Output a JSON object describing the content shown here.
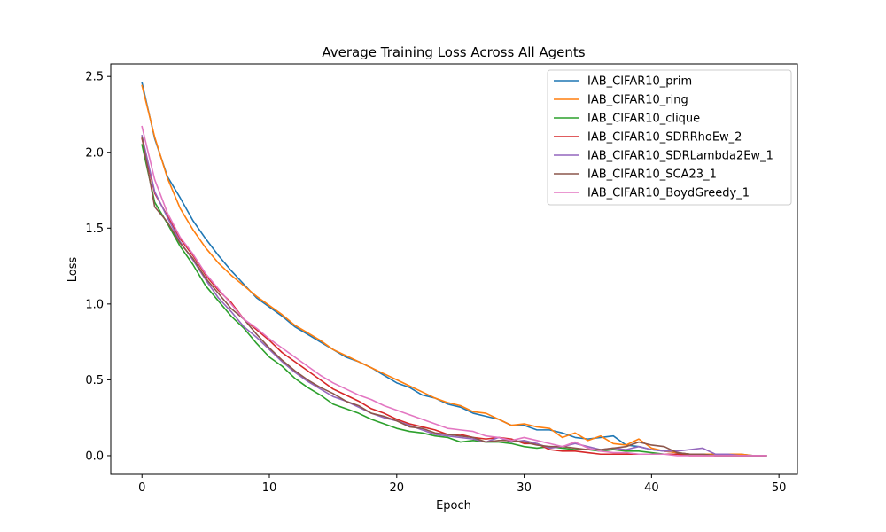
{
  "chart_data": {
    "type": "line",
    "title": "Average Training Loss Across All Agents",
    "xlabel": "Epoch",
    "ylabel": "Loss",
    "xlim": [
      -2.45,
      51.45
    ],
    "ylim": [
      -0.123,
      2.583
    ],
    "x_ticks": [
      0,
      10,
      20,
      30,
      40,
      50
    ],
    "y_ticks": [
      0.0,
      0.5,
      1.0,
      1.5,
      2.0,
      2.5
    ],
    "x_tick_labels": [
      "0",
      "10",
      "20",
      "30",
      "40",
      "50"
    ],
    "y_tick_labels": [
      "0.0",
      "0.5",
      "1.0",
      "1.5",
      "2.0",
      "2.5"
    ],
    "grid": false,
    "legend_position": "top-right",
    "x": [
      0,
      1,
      2,
      3,
      4,
      5,
      6,
      7,
      8,
      9,
      10,
      11,
      12,
      13,
      14,
      15,
      16,
      17,
      18,
      19,
      20,
      21,
      22,
      23,
      24,
      25,
      26,
      27,
      28,
      29,
      30,
      31,
      32,
      33,
      34,
      35,
      36,
      37,
      38,
      39,
      40,
      41,
      42,
      43,
      44,
      45,
      46,
      47,
      48,
      49
    ],
    "series": [
      {
        "name": "IAB_CIFAR10_prim",
        "color": "#1f77b4",
        "values": [
          2.46,
          2.09,
          1.84,
          1.7,
          1.55,
          1.43,
          1.32,
          1.22,
          1.13,
          1.04,
          0.98,
          0.92,
          0.85,
          0.8,
          0.75,
          0.7,
          0.65,
          0.62,
          0.58,
          0.53,
          0.48,
          0.45,
          0.4,
          0.38,
          0.34,
          0.32,
          0.28,
          0.26,
          0.24,
          0.2,
          0.2,
          0.17,
          0.17,
          0.15,
          0.12,
          0.11,
          0.12,
          0.13,
          0.07,
          0.06,
          0.04,
          0.03,
          0.02,
          0.01,
          0.01,
          0.01,
          0.01,
          0.01,
          0.0,
          0.0
        ]
      },
      {
        "name": "IAB_CIFAR10_ring",
        "color": "#ff7f0e",
        "values": [
          2.44,
          2.1,
          1.83,
          1.63,
          1.49,
          1.37,
          1.27,
          1.19,
          1.12,
          1.05,
          0.99,
          0.93,
          0.86,
          0.81,
          0.76,
          0.7,
          0.66,
          0.62,
          0.58,
          0.54,
          0.5,
          0.46,
          0.42,
          0.38,
          0.35,
          0.33,
          0.29,
          0.28,
          0.24,
          0.2,
          0.21,
          0.19,
          0.18,
          0.12,
          0.15,
          0.1,
          0.13,
          0.08,
          0.07,
          0.11,
          0.05,
          0.03,
          0.02,
          0.01,
          0.01,
          0.01,
          0.01,
          0.01,
          0.0,
          0.0
        ]
      },
      {
        "name": "IAB_CIFAR10_clique",
        "color": "#2ca02c",
        "values": [
          2.05,
          1.67,
          1.53,
          1.38,
          1.26,
          1.12,
          1.02,
          0.92,
          0.84,
          0.74,
          0.65,
          0.59,
          0.51,
          0.45,
          0.4,
          0.34,
          0.31,
          0.28,
          0.24,
          0.21,
          0.18,
          0.16,
          0.15,
          0.13,
          0.12,
          0.09,
          0.1,
          0.09,
          0.09,
          0.08,
          0.06,
          0.05,
          0.06,
          0.05,
          0.04,
          0.04,
          0.03,
          0.04,
          0.03,
          0.03,
          0.02,
          0.01,
          0.01,
          0.01,
          0.01,
          0.0,
          0.0,
          0.0,
          0.0,
          0.0
        ]
      },
      {
        "name": "IAB_CIFAR10_SDRRhoEw_2",
        "color": "#d62728",
        "values": [
          2.09,
          1.73,
          1.58,
          1.43,
          1.32,
          1.19,
          1.09,
          1.01,
          0.9,
          0.83,
          0.76,
          0.68,
          0.62,
          0.56,
          0.5,
          0.44,
          0.4,
          0.36,
          0.31,
          0.28,
          0.24,
          0.21,
          0.19,
          0.17,
          0.14,
          0.14,
          0.12,
          0.11,
          0.12,
          0.11,
          0.08,
          0.08,
          0.04,
          0.03,
          0.03,
          0.02,
          0.01,
          0.01,
          0.01,
          0.01,
          0.01,
          0.01,
          0.01,
          0.0,
          0.0,
          0.0,
          0.0,
          0.0,
          0.0,
          0.0
        ]
      },
      {
        "name": "IAB_CIFAR10_SDRLambda2Ew_1",
        "color": "#9467bd",
        "values": [
          2.11,
          1.74,
          1.57,
          1.41,
          1.29,
          1.16,
          1.04,
          0.95,
          0.85,
          0.78,
          0.7,
          0.62,
          0.55,
          0.49,
          0.44,
          0.39,
          0.36,
          0.32,
          0.28,
          0.25,
          0.23,
          0.2,
          0.17,
          0.14,
          0.13,
          0.12,
          0.11,
          0.09,
          0.12,
          0.09,
          0.1,
          0.08,
          0.05,
          0.06,
          0.08,
          0.06,
          0.04,
          0.05,
          0.04,
          0.06,
          0.04,
          0.03,
          0.03,
          0.04,
          0.05,
          0.01,
          0.01,
          0.0,
          0.0,
          0.0
        ]
      },
      {
        "name": "IAB_CIFAR10_SCA23_1",
        "color": "#8c564b",
        "values": [
          2.1,
          1.64,
          1.54,
          1.4,
          1.3,
          1.17,
          1.07,
          0.97,
          0.9,
          0.8,
          0.71,
          0.63,
          0.56,
          0.5,
          0.45,
          0.41,
          0.36,
          0.33,
          0.28,
          0.26,
          0.23,
          0.19,
          0.18,
          0.15,
          0.14,
          0.13,
          0.12,
          0.09,
          0.1,
          0.1,
          0.09,
          0.07,
          0.06,
          0.06,
          0.05,
          0.04,
          0.04,
          0.05,
          0.06,
          0.09,
          0.07,
          0.06,
          0.02,
          0.01,
          0.01,
          0.0,
          0.0,
          0.0,
          0.0,
          0.0
        ]
      },
      {
        "name": "IAB_CIFAR10_BoydGreedy_1",
        "color": "#e377c2",
        "values": [
          2.17,
          1.82,
          1.6,
          1.44,
          1.33,
          1.2,
          1.1,
          1.0,
          0.9,
          0.84,
          0.77,
          0.71,
          0.65,
          0.59,
          0.53,
          0.48,
          0.44,
          0.4,
          0.37,
          0.33,
          0.3,
          0.27,
          0.24,
          0.21,
          0.18,
          0.17,
          0.16,
          0.13,
          0.12,
          0.1,
          0.12,
          0.1,
          0.08,
          0.06,
          0.09,
          0.05,
          0.03,
          0.02,
          0.02,
          0.01,
          0.01,
          0.01,
          0.0,
          0.0,
          0.0,
          0.0,
          0.0,
          0.0,
          0.0,
          0.0
        ]
      }
    ]
  }
}
